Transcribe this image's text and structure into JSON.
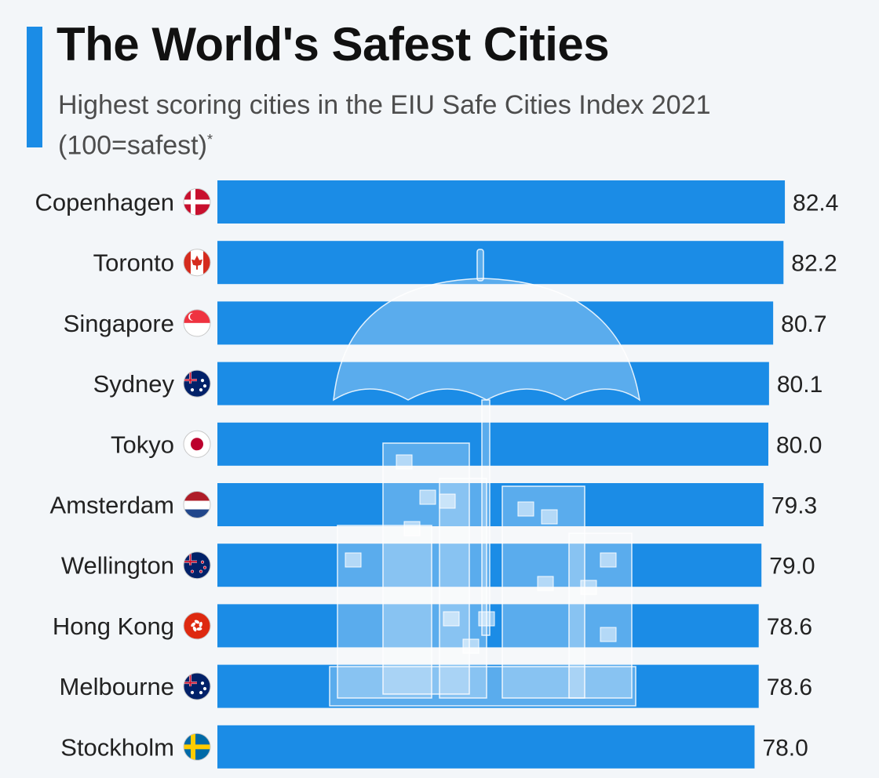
{
  "header": {
    "title": "The World's Safest Cities",
    "subtitle": "Highest scoring cities in the EIU Safe Cities Index 2021 (100=safest)",
    "footnote_marker": "*"
  },
  "colors": {
    "bar": "#1b8ce6",
    "accent": "#1b8ce6",
    "background": "#f3f6f9",
    "text": "#222222"
  },
  "chart_data": {
    "type": "bar",
    "orientation": "horizontal",
    "title": "The World's Safest Cities",
    "subtitle": "Highest scoring cities in the EIU Safe Cities Index 2021 (100=safest)*",
    "categories": [
      "Copenhagen",
      "Toronto",
      "Singapore",
      "Sydney",
      "Tokyo",
      "Amsterdam",
      "Wellington",
      "Hong Kong",
      "Melbourne",
      "Stockholm"
    ],
    "values": [
      82.4,
      82.2,
      80.7,
      80.1,
      80.0,
      79.3,
      79.0,
      78.6,
      78.6,
      78.0
    ],
    "value_labels": [
      "82.4",
      "82.2",
      "80.7",
      "80.1",
      "80.0",
      "79.3",
      "79.0",
      "78.6",
      "78.6",
      "78.0"
    ],
    "flags": [
      "denmark-flag-icon",
      "canada-flag-icon",
      "singapore-flag-icon",
      "australia-flag-icon",
      "japan-flag-icon",
      "netherlands-flag-icon",
      "new-zealand-flag-icon",
      "hong-kong-flag-icon",
      "australia-flag-icon",
      "sweden-flag-icon"
    ],
    "xlabel": "",
    "ylabel": "",
    "xlim": [
      0,
      92
    ],
    "grid": false,
    "legend": "none"
  }
}
